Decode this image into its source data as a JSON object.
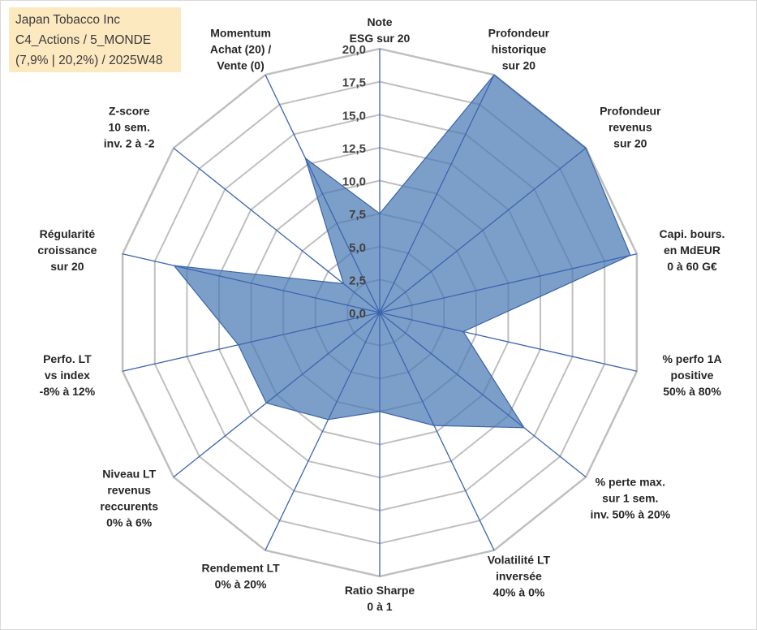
{
  "info": {
    "line1": "Japan Tobacco Inc",
    "line2": "C4_Actions / 5_MONDE",
    "line3": "(7,9% | 20,2%) / 2025W48"
  },
  "colors": {
    "fill": "#4a7ab6",
    "stroke": "#3a63a8",
    "spoke": "#3c64b0",
    "grid": "#bfbfbf"
  },
  "chart_data": {
    "type": "radar",
    "title": "",
    "range": [
      0,
      20
    ],
    "ticks": [
      "0,0",
      "2,5",
      "5,0",
      "7,5",
      "10,0",
      "12,5",
      "15,0",
      "17,5",
      "20,0"
    ],
    "axes": [
      {
        "label": [
          "Note",
          "ESG sur 20"
        ],
        "value": 7.5
      },
      {
        "label": [
          "Profondeur",
          "historique",
          "sur 20"
        ],
        "value": 20
      },
      {
        "label": [
          "Profondeur",
          "revenus",
          "sur 20"
        ],
        "value": 20
      },
      {
        "label": [
          "Capi. bours.",
          "en MdEUR",
          "0 à 60 G€"
        ],
        "value": 19.5
      },
      {
        "label": [
          "% perfo 1A",
          "positive",
          "50% à 80%"
        ],
        "value": 6.5
      },
      {
        "label": [
          "% perte max.",
          "sur 1 sem.",
          "inv. 50% à 20%"
        ],
        "value": 14
      },
      {
        "label": [
          "Volatilité LT",
          "inversée",
          "40% à 0%"
        ],
        "value": 9.5
      },
      {
        "label": [
          "Ratio Sharpe",
          "0 à 1"
        ],
        "value": 7.5
      },
      {
        "label": [
          "Rendement LT",
          "0% à 20%"
        ],
        "value": 9
      },
      {
        "label": [
          "Niveau LT",
          "revenus",
          "reccurents",
          "0% à 6%"
        ],
        "value": 11
      },
      {
        "label": [
          "Perfo. LT",
          "vs index",
          "-8% à 12%"
        ],
        "value": 11
      },
      {
        "label": [
          "Régularité",
          "croissance",
          "sur 20"
        ],
        "value": 16
      },
      {
        "label": [
          "Z-score",
          "10 sem.",
          "inv. 2 à -2"
        ],
        "value": 3.5
      },
      {
        "label": [
          "Momentum",
          "Achat (20) /",
          "Vente (0)"
        ],
        "value": 13
      }
    ]
  }
}
